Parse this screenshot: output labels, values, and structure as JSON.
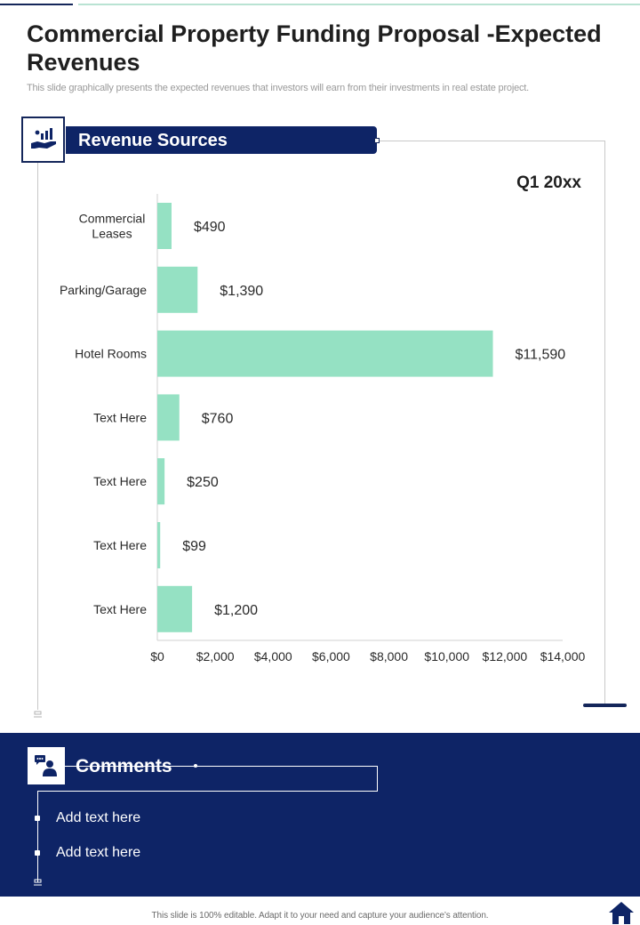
{
  "page": {
    "title": "Commercial Property Funding Proposal -Expected Revenues",
    "subtitle": "This slide graphically presents the expected revenues that investors will earn from their investments in real estate project.",
    "footer": "This slide is 100% editable. Adapt it to your need and capture your audience’s attention."
  },
  "section": {
    "header": "Revenue Sources",
    "period": "Q1 20xx"
  },
  "comments": {
    "title": "Comments",
    "items": [
      "Add text here",
      "Add text here"
    ]
  },
  "colors": {
    "navy": "#0e2466",
    "bar": "#95e1c3",
    "text": "#1f1f1f"
  },
  "chart_data": {
    "type": "bar",
    "orientation": "horizontal",
    "title": "Q1 20xx",
    "categories": [
      "Commercial Leases",
      "Parking/Garage",
      "Hotel Rooms",
      "Text Here",
      "Text Here",
      "Text Here",
      "Text Here"
    ],
    "category_lines": [
      [
        "Commercial",
        "Leases"
      ],
      [
        "Parking/Garage"
      ],
      [
        "Hotel Rooms"
      ],
      [
        "Text Here"
      ],
      [
        "Text Here"
      ],
      [
        "Text Here"
      ],
      [
        "Text Here"
      ]
    ],
    "values": [
      490,
      1390,
      11590,
      760,
      250,
      99,
      1200
    ],
    "value_labels": [
      "$490",
      "$1,390",
      "$11,590",
      "$760",
      "$250",
      "$99",
      "$1,200"
    ],
    "xlim": [
      0,
      14000
    ],
    "ticks": [
      0,
      2000,
      4000,
      6000,
      8000,
      10000,
      12000,
      14000
    ],
    "tick_labels": [
      "$0",
      "$2,000",
      "$4,000",
      "$6,000",
      "$8,000",
      "$10,000",
      "$12,000",
      "$14,000"
    ],
    "grid": false,
    "legend": "none"
  }
}
